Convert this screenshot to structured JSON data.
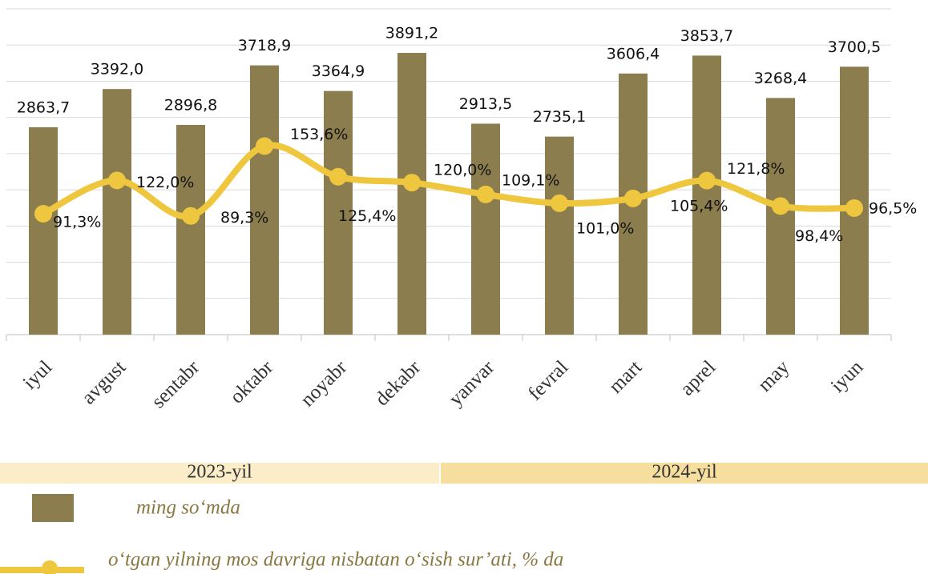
{
  "chart_data": {
    "type": "bar",
    "categories": [
      "iyul",
      "avgust",
      "sentabr",
      "oktabr",
      "noyabr",
      "dekabr",
      "yanvar",
      "fevral",
      "mart",
      "aprel",
      "may",
      "iyun"
    ],
    "series": [
      {
        "name": "ming so‘mda",
        "type": "bar",
        "color": "#8c7d4e",
        "values": [
          2863.7,
          3392.0,
          2896.8,
          3718.9,
          3364.9,
          3891.2,
          2913.5,
          2735.1,
          3606.4,
          3853.7,
          3268.4,
          3700.5
        ],
        "value_labels": [
          "2863,7",
          "3392,0",
          "2896,8",
          "3718,9",
          "3364,9",
          "3891,2",
          "2913,5",
          "2735,1",
          "3606,4",
          "3853,7",
          "3268,4",
          "3700,5"
        ]
      },
      {
        "name": "o‘tgan yilning mos davriga nisbatan o‘sish sur’ati, % da",
        "type": "line",
        "axis": "y2",
        "color": "#efc73f",
        "values": [
          91.3,
          122.0,
          89.3,
          153.6,
          125.4,
          120.0,
          109.1,
          101.0,
          105.4,
          121.8,
          98.4,
          96.5
        ],
        "value_labels": [
          "91,3%",
          "122,0%",
          "89,3%",
          "153,6%",
          "125,4%",
          "120,0%",
          "109,1%",
          "101,0%",
          "105,4%",
          "121,8%",
          "98,4%",
          "96,5%"
        ]
      }
    ],
    "ylim": [
      0,
      4500
    ],
    "yticks": [
      0,
      500,
      1000,
      1500,
      2000,
      2500,
      3000,
      3500,
      4000,
      4500
    ],
    "y2lim": [
      -20,
      280
    ],
    "grid": true,
    "periods": [
      "2023-yil",
      "2024-yil"
    ]
  }
}
